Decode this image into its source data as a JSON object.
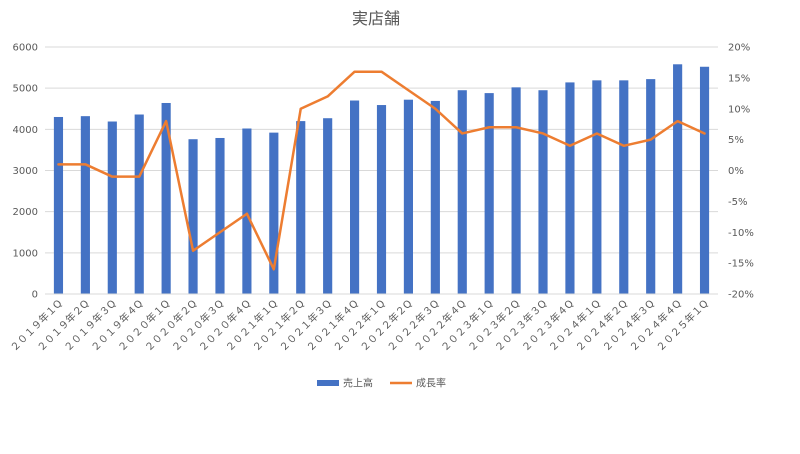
{
  "chart_data": {
    "type": "bar",
    "title": "実店舗",
    "categories": [
      "２０１９年１Q",
      "２０１９年２Q",
      "２０１９年３Q",
      "２０１９年４Q",
      "２０２０年１Q",
      "２０２０年２Q",
      "２０２０年３Q",
      "２０２０年４Q",
      "２０２１年１Q",
      "２０２１年２Q",
      "２０２１年３Q",
      "２０２１年４Q",
      "２０２２年１Q",
      "２０２２年２Q",
      "２０２２年３Q",
      "２０２２年４Q",
      "２０２３年１Q",
      "２０２３年２Q",
      "２０２３年３Q",
      "２０２３年４Q",
      "２０２４年１Q",
      "２０２４年２Q",
      "２０２４年３Q",
      "２０２４年４Q",
      "２０２５年１Q"
    ],
    "series": [
      {
        "name": "売上高",
        "type": "bar",
        "axis": "left",
        "color": "#4472C4",
        "values": [
          4300,
          4320,
          4190,
          4360,
          4640,
          3760,
          3790,
          4020,
          3920,
          4200,
          4270,
          4700,
          4590,
          4720,
          4690,
          4950,
          4880,
          5020,
          4950,
          5140,
          5190,
          5190,
          5220,
          5580,
          5520
        ]
      },
      {
        "name": "成長率",
        "type": "line",
        "axis": "right",
        "color": "#ED7D31",
        "values": [
          1,
          1,
          -1,
          -1,
          8,
          -13,
          -10,
          -7,
          -16,
          10,
          12,
          16,
          16,
          13,
          10,
          6,
          7,
          7,
          6,
          4,
          6,
          4,
          5,
          8,
          6
        ]
      }
    ],
    "y_left": {
      "min": 0,
      "max": 6000,
      "step": 1000,
      "tick_labels": [
        "0",
        "1000",
        "2000",
        "3000",
        "4000",
        "5000",
        "6000"
      ]
    },
    "y_right": {
      "min": -20,
      "max": 20,
      "step": 5,
      "tick_labels": [
        "-20%",
        "-15%",
        "-10%",
        "-5%",
        "0%",
        "5%",
        "10%",
        "15%",
        "20%"
      ]
    },
    "grid": true,
    "legend_position": "bottom"
  }
}
